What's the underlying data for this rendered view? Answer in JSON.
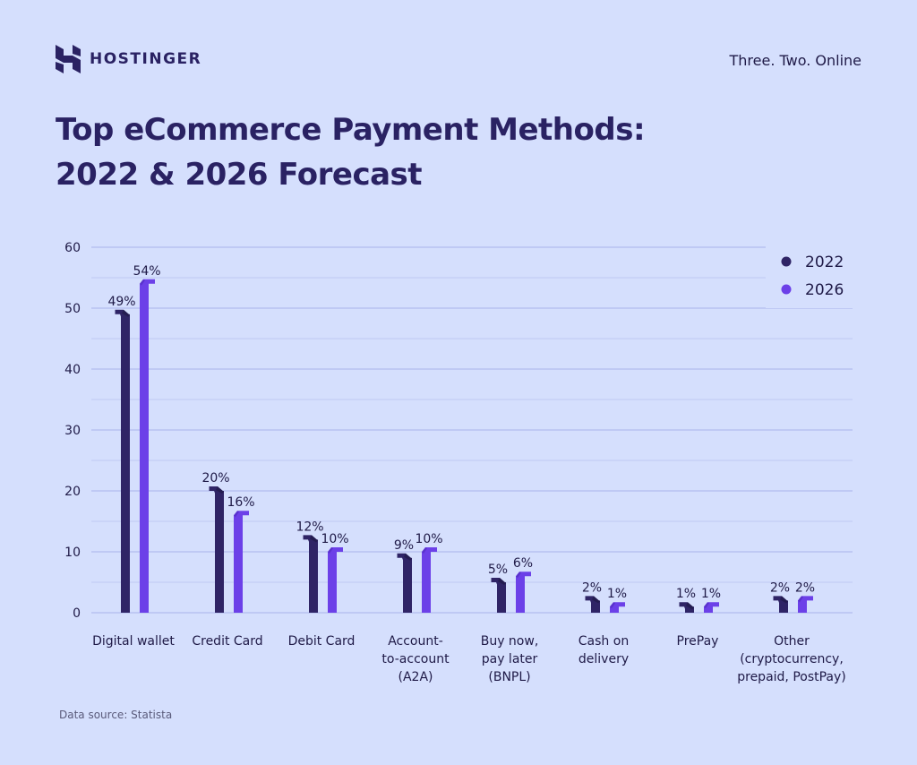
{
  "header": {
    "brand": "HOSTINGER",
    "tagline": "Three. Two. Online"
  },
  "title_lines": [
    "Top eCommerce Payment Methods:",
    "2022 & 2026 Forecast"
  ],
  "source": "Data source: Statista",
  "colors": {
    "background": "#d5dffd",
    "series_2022": "#2f2466",
    "series_2022_dark": "#1b1540",
    "series_2026": "#6c40e8",
    "series_2026_dark": "#4c26b8",
    "gridline": "#a9b3ea",
    "text": "#1f1a47"
  },
  "icons": {
    "logo": "hostinger-h-logo-icon"
  },
  "chart_data": {
    "type": "bar",
    "categories": [
      [
        "Digital wallet"
      ],
      [
        "Credit Card"
      ],
      [
        "Debit Card"
      ],
      [
        "Account-",
        "to-account",
        "(A2A)"
      ],
      [
        "Buy now,",
        "pay later",
        "(BNPL)"
      ],
      [
        "Cash on",
        "delivery"
      ],
      [
        "PrePay"
      ],
      [
        "Other",
        "(cryptocurrency,",
        "prepaid, PostPay)"
      ]
    ],
    "series": [
      {
        "name": "2022",
        "values": [
          49,
          20,
          12,
          9,
          5,
          2,
          1,
          2
        ],
        "labels": [
          "49%",
          "20%",
          "12%",
          "9%",
          "5%",
          "2%",
          "1%",
          "2%"
        ]
      },
      {
        "name": "2026",
        "values": [
          54,
          16,
          10,
          10,
          6,
          1,
          1,
          2
        ],
        "labels": [
          "54%",
          "16%",
          "10%",
          "10%",
          "6%",
          "1%",
          "1%",
          "2%"
        ]
      }
    ],
    "yticks": [
      "0",
      "10",
      "20",
      "30",
      "40",
      "50",
      "60"
    ],
    "ylim": [
      0,
      60
    ],
    "grid": true,
    "legend_position": "top-right"
  }
}
